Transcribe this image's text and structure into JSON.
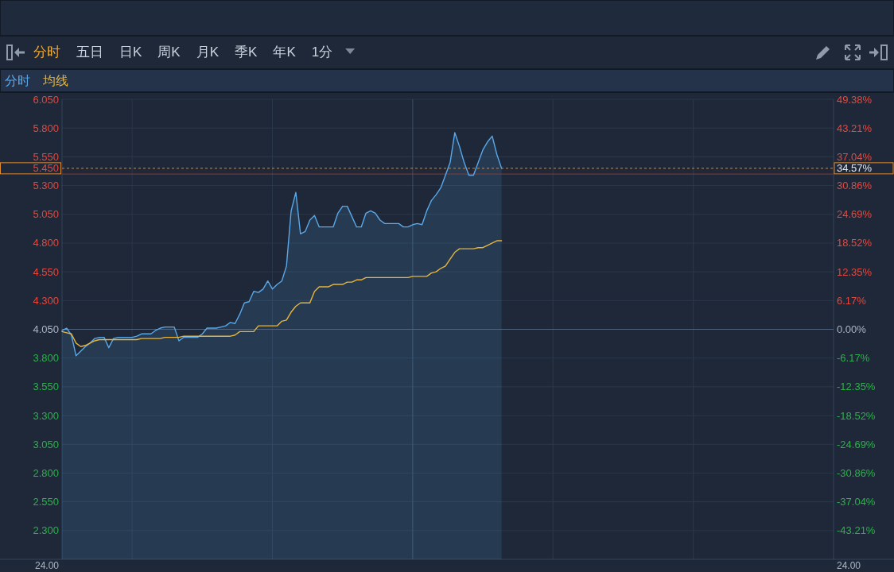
{
  "chart_data": {
    "type": "area",
    "categories": [
      null,
      null,
      null,
      null,
      null,
      null,
      null,
      null,
      null,
      null,
      null,
      null,
      null,
      null,
      null,
      null,
      null,
      null,
      null,
      null,
      null,
      null,
      null,
      null,
      null,
      null,
      null,
      null,
      null,
      null,
      null,
      null,
      null,
      null,
      null,
      null,
      null,
      null,
      null,
      null,
      null,
      null,
      null,
      null,
      null,
      null,
      null,
      null,
      null,
      null,
      null,
      null,
      null,
      null,
      null,
      null,
      null,
      null,
      null,
      null,
      null,
      null,
      null,
      null,
      null,
      null,
      null,
      null,
      null,
      null,
      null,
      null,
      null,
      null,
      null,
      null,
      null,
      null,
      null,
      null,
      null,
      null,
      null,
      null,
      null,
      null,
      null,
      null,
      null,
      null,
      null,
      null,
      null,
      null,
      null,
      null,
      null,
      null,
      null,
      null,
      null,
      null,
      null,
      null,
      null,
      null,
      null,
      null,
      null,
      null,
      null,
      null,
      null,
      null,
      null,
      null,
      null,
      null,
      null,
      null,
      null,
      null,
      null,
      null,
      null,
      null,
      null,
      null,
      null,
      null,
      null,
      null,
      null,
      null,
      null,
      null,
      null,
      null,
      null,
      null,
      null,
      null,
      null,
      null,
      null,
      null,
      null,
      null,
      null,
      null,
      null,
      null,
      null,
      null,
      null,
      null,
      null,
      null,
      null,
      null,
      null,
      null,
      null,
      null,
      null,
      null
    ],
    "series": [
      {
        "name": "分时",
        "color": "#5aa8ea",
        "values": [
          4.04,
          4.06,
          4.0,
          3.82,
          3.86,
          3.9,
          3.93,
          3.97,
          3.98,
          3.98,
          3.89,
          3.97,
          3.98,
          3.98,
          3.98,
          3.98,
          3.99,
          4.01,
          4.01,
          4.01,
          4.04,
          4.06,
          4.07,
          4.07,
          4.07,
          3.95,
          3.98,
          3.98,
          3.98,
          3.98,
          4.01,
          4.06,
          4.06,
          4.06,
          4.07,
          4.08,
          4.11,
          4.1,
          4.18,
          4.28,
          4.29,
          4.38,
          4.37,
          4.4,
          4.47,
          4.4,
          4.44,
          4.47,
          4.6,
          5.08,
          5.24,
          4.88,
          4.9,
          5.0,
          5.04,
          4.94,
          4.94,
          4.94,
          4.94,
          5.06,
          5.12,
          5.12,
          5.03,
          4.94,
          4.94,
          5.06,
          5.08,
          5.06,
          5.0,
          4.97,
          4.97,
          4.97,
          4.97,
          4.94,
          4.94,
          4.96,
          4.97,
          4.96,
          5.08,
          5.17,
          5.22,
          5.28,
          5.39,
          5.5,
          5.76,
          5.64,
          5.5,
          5.39,
          5.39,
          5.5,
          5.61,
          5.68,
          5.73,
          5.57,
          5.45,
          null,
          null,
          null,
          null,
          null,
          null,
          null,
          null,
          null,
          null,
          null,
          null,
          null,
          null,
          null,
          null,
          null,
          null,
          null,
          null,
          null,
          null,
          null,
          null,
          null,
          null,
          null,
          null,
          null,
          null,
          null,
          null,
          null,
          null,
          null,
          null,
          null,
          null,
          null,
          null,
          null,
          null,
          null,
          null,
          null,
          null,
          null,
          null,
          null,
          null,
          null,
          null,
          null,
          null,
          null,
          null,
          null,
          null,
          null,
          null,
          null,
          null,
          null,
          null,
          null,
          null,
          null,
          null,
          null,
          null,
          null
        ]
      },
      {
        "name": "均线",
        "type": "line",
        "color": "#e8b53c",
        "values": [
          4.03,
          4.02,
          4.01,
          3.93,
          3.9,
          3.91,
          3.93,
          3.95,
          3.96,
          3.96,
          3.96,
          3.96,
          3.96,
          3.96,
          3.96,
          3.96,
          3.96,
          3.97,
          3.97,
          3.97,
          3.97,
          3.97,
          3.98,
          3.98,
          3.98,
          3.98,
          3.99,
          3.99,
          3.99,
          3.99,
          3.99,
          3.99,
          3.99,
          3.99,
          3.99,
          3.99,
          3.99,
          4.0,
          4.03,
          4.03,
          4.03,
          4.03,
          4.08,
          4.08,
          4.08,
          4.08,
          4.08,
          4.12,
          4.13,
          4.2,
          4.25,
          4.28,
          4.28,
          4.28,
          4.38,
          4.42,
          4.42,
          4.42,
          4.44,
          4.44,
          4.44,
          4.46,
          4.46,
          4.48,
          4.48,
          4.5,
          4.5,
          4.5,
          4.5,
          4.5,
          4.5,
          4.5,
          4.5,
          4.5,
          4.5,
          4.51,
          4.51,
          4.51,
          4.51,
          4.54,
          4.55,
          4.58,
          4.6,
          4.66,
          4.72,
          4.75,
          4.75,
          4.75,
          4.75,
          4.76,
          4.76,
          4.78,
          4.8,
          4.82,
          4.82,
          null,
          null,
          null,
          null,
          null,
          null,
          null,
          null,
          null,
          null,
          null,
          null,
          null,
          null,
          null,
          null,
          null,
          null,
          null,
          null,
          null,
          null,
          null,
          null,
          null,
          null,
          null,
          null,
          null,
          null,
          null,
          null,
          null,
          null,
          null,
          null,
          null,
          null,
          null,
          null,
          null,
          null,
          null,
          null,
          null,
          null,
          null,
          null,
          null,
          null,
          null,
          null,
          null,
          null,
          null,
          null,
          null,
          null,
          null,
          null,
          null,
          null,
          null,
          null,
          null,
          null,
          null,
          null,
          null,
          null,
          null
        ]
      }
    ],
    "ylim": [
      2.05,
      6.05
    ],
    "yticks": [
      {
        "value": 2.3,
        "label": "2.300"
      },
      {
        "value": 2.55,
        "label": "2.550"
      },
      {
        "value": 2.8,
        "label": "2.800"
      },
      {
        "value": 3.05,
        "label": "3.050"
      },
      {
        "value": 3.3,
        "label": "3.300"
      },
      {
        "value": 3.55,
        "label": "3.550"
      },
      {
        "value": 3.8,
        "label": "3.800"
      },
      {
        "value": 4.05,
        "label": "4.050"
      },
      {
        "value": 4.3,
        "label": "4.300"
      },
      {
        "value": 4.55,
        "label": "4.550"
      },
      {
        "value": 4.8,
        "label": "4.800"
      },
      {
        "value": 5.05,
        "label": "5.050"
      },
      {
        "value": 5.3,
        "label": "5.300"
      },
      {
        "value": 5.55,
        "label": "5.550"
      },
      {
        "value": 5.8,
        "label": "5.800"
      },
      {
        "value": 6.05,
        "label": "6.050"
      }
    ],
    "y2lim": [
      -49.38,
      49.38
    ],
    "y2ticks": [
      {
        "value": -43.21,
        "label": "-43.21%"
      },
      {
        "value": -37.04,
        "label": "-37.04%"
      },
      {
        "value": -30.86,
        "label": "-30.86%"
      },
      {
        "value": -24.69,
        "label": "-24.69%"
      },
      {
        "value": -18.52,
        "label": "-18.52%"
      },
      {
        "value": -12.35,
        "label": "-12.35%"
      },
      {
        "value": -6.17,
        "label": "-6.17%"
      },
      {
        "value": 0,
        "label": "0.00%"
      },
      {
        "value": 6.17,
        "label": "6.17%"
      },
      {
        "value": 12.35,
        "label": "12.35%"
      },
      {
        "value": 18.52,
        "label": "18.52%"
      },
      {
        "value": 24.69,
        "label": "24.69%"
      },
      {
        "value": 30.86,
        "label": "30.86%"
      },
      {
        "value": 37.04,
        "label": "37.04%"
      },
      {
        "value": 43.21,
        "label": "43.21%"
      },
      {
        "value": 49.38,
        "label": "49.38%"
      }
    ],
    "grid": true,
    "legend": "top left",
    "ref_lines": [
      {
        "axis": "y",
        "value": 4.05,
        "color": "#52637d"
      },
      {
        "axis": "y",
        "value": 5.4,
        "color": "#8c3a33"
      },
      {
        "axis": "y",
        "value": 5.45,
        "label": "5.450",
        "color": "#e08a30",
        "line_style": "dotted"
      }
    ],
    "annotations": [
      "分时",
      "五日",
      "日K",
      "周K",
      "月K",
      "季K",
      "年K",
      "1分",
      "34.57%",
      "24.00",
      "24.00"
    ]
  }
}
